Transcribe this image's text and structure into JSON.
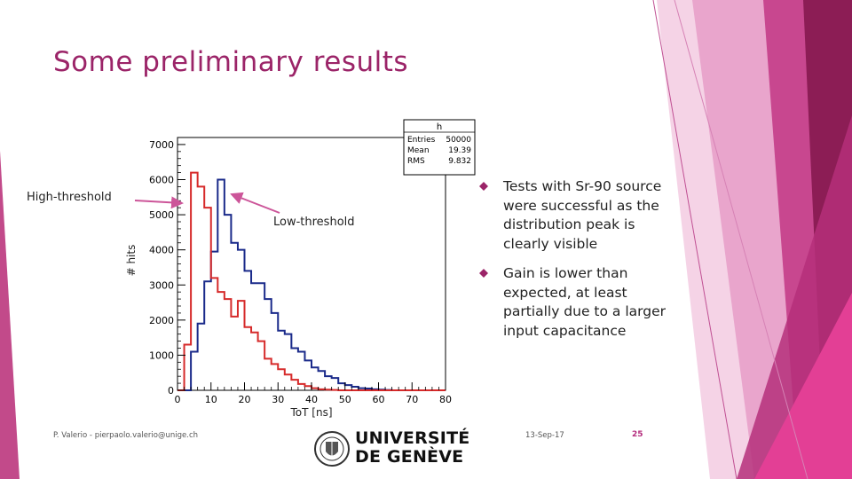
{
  "slide": {
    "title": "Some preliminary results",
    "annotation_high": "High-threshold",
    "annotation_low": "Low-threshold",
    "bullets": [
      "Tests with Sr-90 source were successful as the distribution peak is clearly visible",
      "Gain is lower than expected, at least partially due to a larger input capacitance"
    ],
    "footer_author": "P. Valerio - pierpaolo.valerio@unige.ch",
    "footer_date": "13-Sep-17",
    "page_number": "25",
    "logo_line1": "UNIVERSITÉ",
    "logo_line2": "DE GENÈVE",
    "accent_color": "#9b2468"
  },
  "chart_data": {
    "type": "histogram",
    "xlabel": "ToT [ns]",
    "ylabel": "# hits",
    "xlim": [
      0,
      80
    ],
    "ylim": [
      0,
      7200
    ],
    "x_ticks": [
      0,
      10,
      20,
      30,
      40,
      50,
      60,
      70,
      80
    ],
    "y_ticks": [
      0,
      1000,
      2000,
      3000,
      4000,
      5000,
      6000,
      7000
    ],
    "bin_width": 2,
    "stats_box": {
      "name": "h",
      "rows": [
        {
          "label": "Entries",
          "value": "50000"
        },
        {
          "label": "Mean",
          "value": "19.39"
        },
        {
          "label": "RMS",
          "value": "9.832"
        }
      ]
    },
    "series": [
      {
        "name": "Low-threshold",
        "color": "#1a2a8a",
        "values": [
          0,
          0,
          1100,
          1900,
          3100,
          3950,
          6000,
          5000,
          4200,
          4000,
          3400,
          3050,
          3050,
          2600,
          2200,
          1700,
          1600,
          1200,
          1100,
          850,
          650,
          550,
          400,
          350,
          200,
          150,
          100,
          60,
          50,
          30,
          20,
          10,
          0,
          0,
          0,
          0,
          0,
          0,
          0,
          0
        ]
      },
      {
        "name": "High-threshold",
        "color": "#d62a2a",
        "values": [
          0,
          1300,
          6200,
          5800,
          5200,
          3200,
          2800,
          2600,
          2100,
          2550,
          1800,
          1650,
          1400,
          900,
          750,
          600,
          450,
          300,
          180,
          120,
          60,
          30,
          20,
          10,
          0,
          0,
          0,
          0,
          0,
          0,
          0,
          0,
          0,
          0,
          0,
          0,
          0,
          0,
          0,
          0
        ]
      }
    ]
  }
}
